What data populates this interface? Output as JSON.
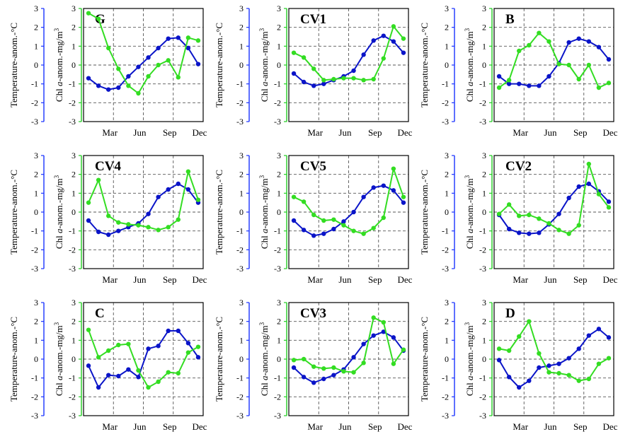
{
  "colors": {
    "temperature": "#0a14c8",
    "chl": "#33dd22",
    "axis_left": "#1a33ff",
    "axis_right": "#22cc22",
    "grid": "#555555"
  },
  "axis_labels": {
    "left": "Temperature-anom.-°C",
    "right_pre": "Chl ",
    "right_ital": "a",
    "right_post": "-anom.-mg/m",
    "right_sup": "3"
  },
  "chart_data": [
    {
      "type": "line",
      "title": "G",
      "x": [
        1,
        2,
        3,
        4,
        5,
        6,
        7,
        8,
        9,
        10,
        11,
        12
      ],
      "x_ticks": [
        "Mar",
        "Jun",
        "Sep",
        "Dec"
      ],
      "ylim": [
        -3,
        3
      ],
      "y2lim": [
        -3,
        3
      ],
      "series": [
        {
          "values": [
            -0.7,
            -1.1,
            -1.3,
            -1.2,
            -0.6,
            -0.1,
            0.4,
            0.9,
            1.4,
            1.45,
            0.9,
            0.05
          ]
        },
        {
          "values": [
            2.75,
            2.45,
            0.9,
            -0.2,
            -1.1,
            -1.5,
            -0.6,
            0.0,
            0.25,
            -0.65,
            1.45,
            1.3
          ]
        }
      ]
    },
    {
      "type": "line",
      "title": "CV1",
      "x": [
        1,
        2,
        3,
        4,
        5,
        6,
        7,
        8,
        9,
        10,
        11,
        12
      ],
      "x_ticks": [
        "Mar",
        "Jun",
        "Sep",
        "Dec"
      ],
      "ylim": [
        -3,
        3
      ],
      "y2lim": [
        -3,
        3
      ],
      "series": [
        {
          "values": [
            -0.45,
            -0.9,
            -1.1,
            -1.0,
            -0.8,
            -0.6,
            -0.3,
            0.55,
            1.3,
            1.55,
            1.25,
            0.65
          ]
        },
        {
          "values": [
            0.65,
            0.4,
            -0.2,
            -0.8,
            -0.75,
            -0.7,
            -0.7,
            -0.8,
            -0.75,
            0.35,
            2.05,
            1.4
          ]
        }
      ]
    },
    {
      "type": "line",
      "title": "B",
      "x": [
        1,
        2,
        3,
        4,
        5,
        6,
        7,
        8,
        9,
        10,
        11,
        12
      ],
      "x_ticks": [
        "Mar",
        "Jun",
        "Sep",
        "Dec"
      ],
      "ylim": [
        -3,
        3
      ],
      "y2lim": [
        -3,
        3
      ],
      "series": [
        {
          "values": [
            -0.6,
            -1.0,
            -1.0,
            -1.1,
            -1.1,
            -0.6,
            0.1,
            1.2,
            1.4,
            1.25,
            0.95,
            0.3
          ]
        },
        {
          "values": [
            -1.2,
            -0.8,
            0.75,
            1.05,
            1.7,
            1.25,
            0.05,
            0.0,
            -0.75,
            0.0,
            -1.2,
            -0.95
          ]
        }
      ]
    },
    {
      "type": "line",
      "title": "CV4",
      "x": [
        1,
        2,
        3,
        4,
        5,
        6,
        7,
        8,
        9,
        10,
        11,
        12
      ],
      "x_ticks": [
        "Mar",
        "Jun",
        "Sep",
        "Dec"
      ],
      "ylim": [
        -3,
        3
      ],
      "y2lim": [
        -3,
        3
      ],
      "series": [
        {
          "values": [
            -0.45,
            -1.05,
            -1.2,
            -1.0,
            -0.8,
            -0.6,
            -0.1,
            0.8,
            1.2,
            1.5,
            1.2,
            0.5
          ]
        },
        {
          "values": [
            0.5,
            1.7,
            -0.2,
            -0.55,
            -0.65,
            -0.7,
            -0.8,
            -0.95,
            -0.8,
            -0.4,
            2.15,
            0.65
          ]
        }
      ]
    },
    {
      "type": "line",
      "title": "CV5",
      "x": [
        1,
        2,
        3,
        4,
        5,
        6,
        7,
        8,
        9,
        10,
        11,
        12
      ],
      "x_ticks": [
        "Mar",
        "Jun",
        "Sep",
        "Dec"
      ],
      "ylim": [
        -3,
        3
      ],
      "y2lim": [
        -3,
        3
      ],
      "series": [
        {
          "values": [
            -0.45,
            -0.95,
            -1.25,
            -1.15,
            -0.9,
            -0.5,
            0.0,
            0.8,
            1.3,
            1.4,
            1.15,
            0.5
          ]
        },
        {
          "values": [
            0.8,
            0.55,
            -0.15,
            -0.45,
            -0.4,
            -0.7,
            -1.0,
            -1.15,
            -0.85,
            -0.3,
            2.3,
            0.8
          ]
        }
      ]
    },
    {
      "type": "line",
      "title": "CV2",
      "x": [
        1,
        2,
        3,
        4,
        5,
        6,
        7,
        8,
        9,
        10,
        11,
        12
      ],
      "x_ticks": [
        "Mar",
        "Jun",
        "Sep",
        "Dec"
      ],
      "ylim": [
        -3,
        3
      ],
      "y2lim": [
        -3,
        3
      ],
      "series": [
        {
          "values": [
            -0.15,
            -0.9,
            -1.1,
            -1.15,
            -1.1,
            -0.65,
            -0.1,
            0.75,
            1.35,
            1.5,
            1.1,
            0.55
          ]
        },
        {
          "values": [
            -0.1,
            0.4,
            -0.2,
            -0.15,
            -0.35,
            -0.6,
            -0.95,
            -1.15,
            -0.7,
            2.55,
            0.95,
            0.25
          ]
        }
      ]
    },
    {
      "type": "line",
      "title": "C",
      "x": [
        1,
        2,
        3,
        4,
        5,
        6,
        7,
        8,
        9,
        10,
        11,
        12
      ],
      "x_ticks": [
        "Mar",
        "Jun",
        "Sep",
        "Dec"
      ],
      "ylim": [
        -3,
        3
      ],
      "y2lim": [
        -3,
        3
      ],
      "series": [
        {
          "values": [
            -0.35,
            -1.5,
            -0.85,
            -0.9,
            -0.55,
            -0.95,
            0.55,
            0.7,
            1.5,
            1.5,
            0.85,
            0.1
          ]
        },
        {
          "values": [
            1.55,
            0.1,
            0.45,
            0.75,
            0.8,
            -0.6,
            -1.5,
            -1.2,
            -0.7,
            -0.75,
            0.35,
            0.65
          ]
        }
      ]
    },
    {
      "type": "line",
      "title": "CV3",
      "x": [
        1,
        2,
        3,
        4,
        5,
        6,
        7,
        8,
        9,
        10,
        11,
        12
      ],
      "x_ticks": [
        "Mar",
        "Jun",
        "Sep",
        "Dec"
      ],
      "ylim": [
        -3,
        3
      ],
      "y2lim": [
        -3,
        3
      ],
      "series": [
        {
          "values": [
            -0.45,
            -0.95,
            -1.25,
            -1.05,
            -0.85,
            -0.55,
            0.1,
            0.8,
            1.25,
            1.45,
            1.15,
            0.45
          ]
        },
        {
          "values": [
            -0.05,
            0.0,
            -0.4,
            -0.5,
            -0.45,
            -0.65,
            -0.7,
            -0.2,
            2.2,
            1.95,
            -0.25,
            0.5
          ]
        }
      ]
    },
    {
      "type": "line",
      "title": "D",
      "x": [
        1,
        2,
        3,
        4,
        5,
        6,
        7,
        8,
        9,
        10,
        11,
        12
      ],
      "x_ticks": [
        "Mar",
        "Jun",
        "Sep",
        "Dec"
      ],
      "ylim": [
        -3,
        3
      ],
      "y2lim": [
        -3,
        3
      ],
      "series": [
        {
          "values": [
            -0.05,
            -0.95,
            -1.5,
            -1.15,
            -0.45,
            -0.35,
            -0.25,
            0.05,
            0.55,
            1.25,
            1.6,
            1.15
          ]
        },
        {
          "values": [
            0.55,
            0.45,
            1.2,
            2.0,
            0.3,
            -0.7,
            -0.75,
            -0.85,
            -1.15,
            -1.05,
            -0.25,
            0.05
          ]
        }
      ]
    }
  ]
}
